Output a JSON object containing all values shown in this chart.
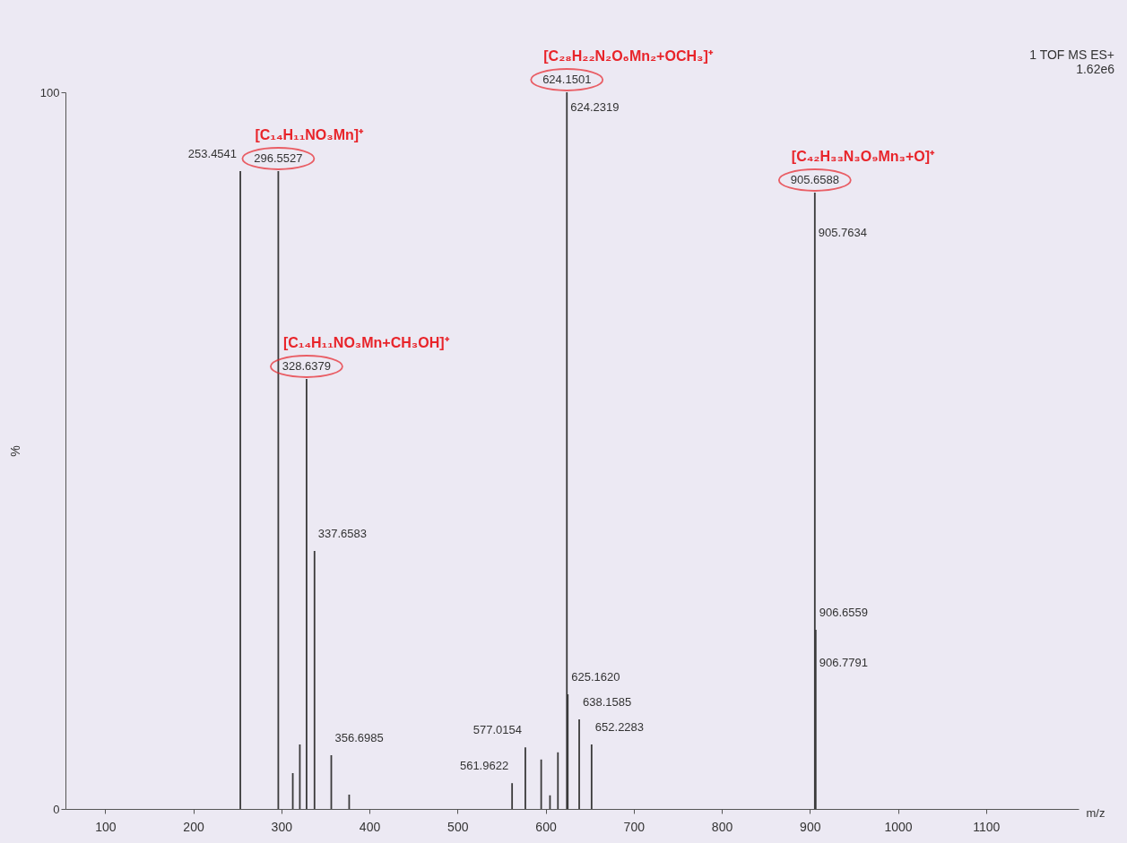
{
  "chart_data": {
    "type": "bar",
    "xlabel": "m/z",
    "ylabel": "%",
    "x": [
      253.4541,
      296.5527,
      313,
      321,
      328.6379,
      337.6583,
      356.6985,
      377,
      561.9622,
      577.0154,
      595,
      605,
      614,
      624.1501,
      625.162,
      638.1585,
      652.2283,
      905.6588,
      906.6559
    ],
    "values": [
      89,
      89,
      5,
      9,
      60,
      36,
      7.5,
      2,
      3.6,
      8.6,
      6.9,
      1.9,
      7.9,
      100,
      16,
      12.5,
      9,
      86,
      25
    ],
    "color": "#3a3a3a",
    "xlim": [
      60,
      1200
    ],
    "xticks": [
      100,
      200,
      300,
      400,
      500,
      600,
      700,
      800,
      900,
      1000,
      1100
    ],
    "ylim": [
      0,
      100
    ],
    "yticks": [
      0,
      100
    ],
    "grid": false,
    "annotations": [
      {
        "text": "253.4541",
        "x": 253.4541,
        "y": 89
      },
      {
        "text": "[C₁₄H₁₁NO₃Mn]⁺",
        "x": 296.5527,
        "y": 89
      },
      {
        "text": "296.5527",
        "x": 296.5527,
        "y": 89
      },
      {
        "text": "[C₁₄H₁₁NO₃Mn+CH₃OH]⁺",
        "x": 328.6379,
        "y": 60
      },
      {
        "text": "328.6379",
        "x": 328.6379,
        "y": 60
      },
      {
        "text": "337.6583",
        "x": 337.6583,
        "y": 36
      },
      {
        "text": "356.6985",
        "x": 356.6985,
        "y": 7.5
      },
      {
        "text": "561.9622",
        "x": 561.9622,
        "y": 3.6
      },
      {
        "text": "577.0154",
        "x": 577.0154,
        "y": 8.6
      },
      {
        "text": "[C₂₈H₂₂N₂O₆Mn₂+OCH₃]⁺",
        "x": 624.1501,
        "y": 100
      },
      {
        "text": "624.1501",
        "x": 624.1501,
        "y": 100
      },
      {
        "text": "624.2319",
        "x": 624.1501,
        "y": 95.5
      },
      {
        "text": "625.1620",
        "x": 625.162,
        "y": 16
      },
      {
        "text": "638.1585",
        "x": 638.1585,
        "y": 12.5
      },
      {
        "text": "652.2283",
        "x": 652.2283,
        "y": 9
      },
      {
        "text": "[C₄₂H₃₃N₃O₉Mn₃+O]⁺",
        "x": 905.6588,
        "y": 86
      },
      {
        "text": "905.6588",
        "x": 905.6588,
        "y": 86
      },
      {
        "text": "905.7634",
        "x": 905.6588,
        "y": 78
      },
      {
        "text": "906.6559",
        "x": 906.6559,
        "y": 25
      },
      {
        "text": "906.7791",
        "x": 906.6559,
        "y": 18
      },
      "1 TOF MS ES+",
      "1.62e6"
    ]
  }
}
